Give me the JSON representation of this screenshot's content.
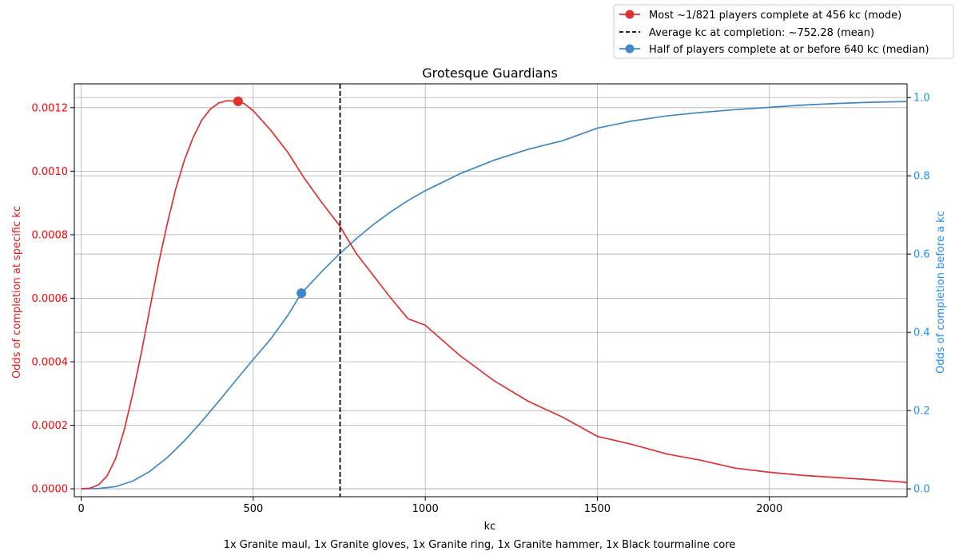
{
  "chart_data": {
    "type": "line",
    "title": "Grotesque Guardians",
    "xlabel": "kc",
    "ylabel_left": "Odds of completion at specific kc",
    "ylabel_right": "Odds of completion before a kc",
    "footer": "1x Granite maul, 1x Granite gloves, 1x Granite ring, 1x Granite hammer, 1x Black tourmaline core",
    "xlim": [
      -20,
      2400
    ],
    "ylim_left": [
      -2.5e-05,
      0.001275
    ],
    "ylim_right": [
      -0.02,
      1.035
    ],
    "grid": true,
    "legend_position": "top-right",
    "x_ticks": [
      0,
      500,
      1000,
      1500,
      2000
    ],
    "y_ticks_left": [
      "0.0000",
      "0.0002",
      "0.0004",
      "0.0006",
      "0.0008",
      "0.0010",
      "0.0012"
    ],
    "y_ticks_left_values": [
      0,
      0.0002,
      0.0004,
      0.0006,
      0.0008,
      0.001,
      0.0012
    ],
    "y_ticks_right": [
      "0.0",
      "0.2",
      "0.4",
      "0.6",
      "0.8",
      "1.0"
    ],
    "y_ticks_right_values": [
      0,
      0.2,
      0.4,
      0.6,
      0.8,
      1.0
    ],
    "colors": {
      "pmf": "#e03030",
      "cdf": "#3d88c5",
      "mean": "#000000",
      "right_axis": "#1e8fff",
      "left_axis": "#ff0000",
      "grid": "#b0b0b0"
    },
    "series": [
      {
        "name": "Most ~1/821 players complete at 456 kc (mode)",
        "axis": "left",
        "x": [
          0,
          25,
          50,
          75,
          100,
          125,
          150,
          175,
          200,
          225,
          250,
          275,
          300,
          325,
          350,
          375,
          400,
          425,
          456,
          475,
          500,
          550,
          600,
          650,
          700,
          750,
          800,
          850,
          900,
          950,
          1000,
          1100,
          1200,
          1300,
          1400,
          1500,
          1600,
          1700,
          1800,
          1900,
          2000,
          2100,
          2200,
          2300,
          2400
        ],
        "values": [
          0.0,
          2e-06,
          1.2e-05,
          4e-05,
          9.5e-05,
          0.000185,
          0.0003,
          0.00043,
          0.00057,
          0.00071,
          0.000835,
          0.000945,
          0.001035,
          0.001105,
          0.00116,
          0.001195,
          0.001215,
          0.001222,
          0.00122,
          0.001212,
          0.00119,
          0.00113,
          0.00106,
          0.000975,
          0.0009,
          0.00083,
          0.00074,
          0.00067,
          0.0006,
          0.000535,
          0.000515,
          0.00042,
          0.00034,
          0.000275,
          0.000225,
          0.000165,
          0.00014,
          0.00011,
          9e-05,
          6.5e-05,
          5.2e-05,
          4.2e-05,
          3.5e-05,
          2.8e-05,
          2e-05
        ]
      },
      {
        "name": "Half of players complete at or before 640 kc (median)",
        "axis": "right",
        "x": [
          0,
          50,
          100,
          150,
          200,
          250,
          300,
          350,
          400,
          450,
          500,
          550,
          600,
          640,
          700,
          750,
          800,
          850,
          900,
          950,
          1000,
          1100,
          1200,
          1300,
          1400,
          1500,
          1600,
          1700,
          1800,
          1900,
          2000,
          2100,
          2200,
          2300,
          2400
        ],
        "values": [
          0.0,
          0.001,
          0.006,
          0.02,
          0.045,
          0.08,
          0.123,
          0.172,
          0.224,
          0.278,
          0.331,
          0.382,
          0.443,
          0.5,
          0.556,
          0.6,
          0.64,
          0.676,
          0.708,
          0.737,
          0.762,
          0.805,
          0.84,
          0.868,
          0.89,
          0.922,
          0.94,
          0.953,
          0.962,
          0.969,
          0.975,
          0.981,
          0.985,
          0.988,
          0.99
        ]
      }
    ],
    "markers": [
      {
        "name": "Most ~1/821 players complete at 456 kc (mode)",
        "axis": "left",
        "x": 456,
        "y": 0.00122
      },
      {
        "name": "Half of players complete at or before 640 kc (median)",
        "axis": "right",
        "x": 640,
        "y": 0.5
      }
    ],
    "vline": {
      "name": "Average kc at completion: ~752.28 (mean)",
      "x": 752.28
    },
    "legend": [
      "Most ~1/821 players complete at 456 kc (mode)",
      "Average kc at completion: ~752.28 (mean)",
      "Half of players complete at or before 640 kc (median)"
    ]
  }
}
